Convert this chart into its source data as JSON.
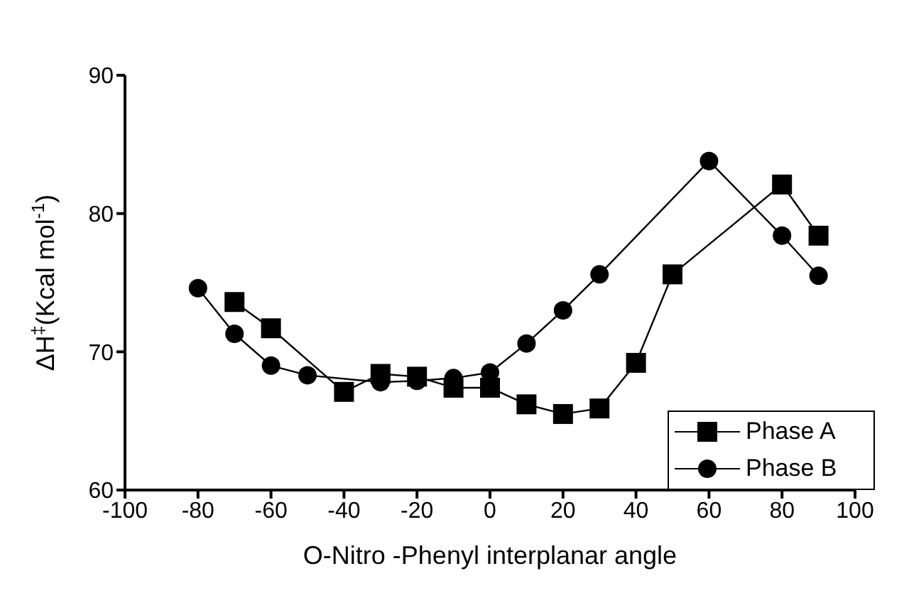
{
  "chart_data": {
    "type": "line",
    "xlabel": "O-Nitro -Phenyl interplanar angle",
    "ylabel": "ΔH$^{‡}$(Kcal mol$^{-1}$)",
    "xlim": [
      -100,
      100
    ],
    "xticks": [
      -100,
      -80,
      -60,
      -40,
      -20,
      0,
      20,
      40,
      60,
      80,
      100
    ],
    "ylim": [
      60,
      90
    ],
    "yticks": [
      60,
      70,
      80,
      90
    ],
    "grid": false,
    "legend": "bottom right",
    "line_style": "solid",
    "series": [
      {
        "name": "Phase A",
        "color": "#000000",
        "marker": "square",
        "x": [
          -70,
          -60,
          -40,
          -30,
          -20,
          -10,
          0,
          10,
          20,
          30,
          40,
          50,
          80,
          90
        ],
        "values": [
          73.6,
          71.7,
          67.1,
          68.4,
          68.2,
          67.4,
          67.4,
          66.2,
          65.5,
          65.9,
          69.2,
          75.6,
          82.1,
          78.4
        ]
      },
      {
        "name": "Phase B",
        "color": "#000000",
        "marker": "circle",
        "x": [
          -80,
          -70,
          -60,
          -50,
          -30,
          -20,
          -10,
          0,
          10,
          20,
          30,
          60,
          80,
          90
        ],
        "values": [
          74.6,
          71.3,
          69.0,
          68.3,
          67.8,
          67.9,
          68.1,
          68.5,
          70.6,
          73.0,
          75.6,
          83.8,
          78.4,
          75.5
        ]
      }
    ]
  }
}
